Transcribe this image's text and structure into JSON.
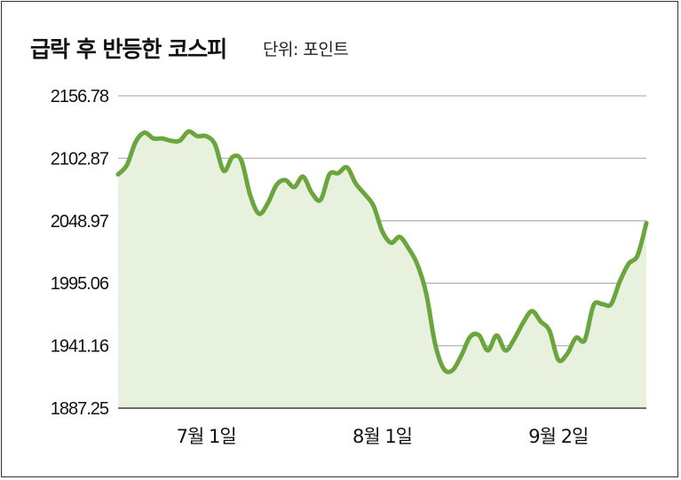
{
  "title": "급락 후 반등한 코스피",
  "unit_label": "단위: 포인트",
  "colors": {
    "line": "#6aa53e",
    "area": "#e8f1de",
    "grid": "#b5b5b5",
    "axis": "#6b6b6b"
  },
  "chart_data": {
    "type": "area",
    "title": "급락 후 반등한 코스피",
    "ylabel": "단위: 포인트",
    "xlabel": "",
    "ylim": [
      1887.25,
      2156.78
    ],
    "yticks": [
      "2156.78",
      "2102.87",
      "2048.97",
      "1995.06",
      "1941.16",
      "1887.25"
    ],
    "xticks": [
      "7월 1일",
      "8월 1일",
      "9월 2일"
    ],
    "xtick_index": [
      10,
      30,
      50
    ],
    "grid": true,
    "x": [
      0,
      1,
      2,
      3,
      4,
      5,
      6,
      7,
      8,
      9,
      10,
      11,
      12,
      13,
      14,
      15,
      16,
      17,
      18,
      19,
      20,
      21,
      22,
      23,
      24,
      25,
      26,
      27,
      28,
      29,
      30,
      31,
      32,
      33,
      34,
      35,
      36,
      37,
      38,
      39,
      40,
      41,
      42,
      43,
      44,
      45,
      46,
      47,
      48,
      49,
      50,
      51,
      52,
      53,
      54,
      55,
      56,
      57,
      58,
      59,
      60
    ],
    "series": [
      {
        "values": [
          2089,
          2097,
          2117,
          2125,
          2120,
          2120,
          2118,
          2118,
          2126,
          2122,
          2122,
          2115,
          2092,
          2104,
          2101,
          2071,
          2055,
          2064,
          2080,
          2084,
          2078,
          2087,
          2073,
          2067,
          2089,
          2090,
          2095,
          2081,
          2072,
          2062,
          2040,
          2030,
          2035,
          2025,
          2011,
          1986,
          1943,
          1921,
          1920,
          1933,
          1949,
          1950,
          1937,
          1950,
          1937,
          1947,
          1961,
          1971,
          1962,
          1954,
          1929,
          1934,
          1948,
          1946,
          1976,
          1977,
          1977,
          1997,
          2012,
          2019,
          2047
        ]
      }
    ]
  }
}
